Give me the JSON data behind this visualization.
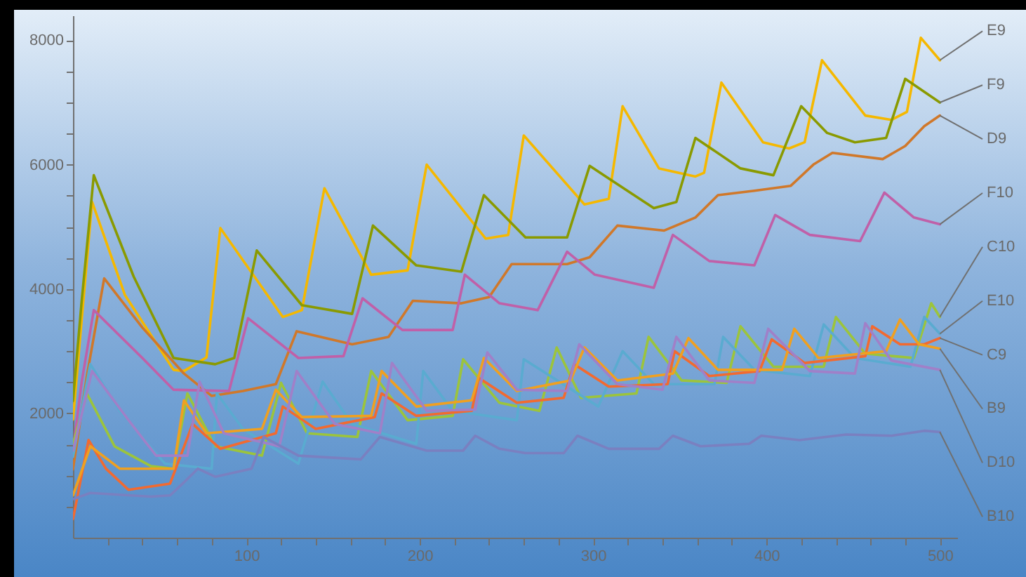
{
  "chart_data": {
    "type": "line",
    "xlim": [
      0,
      510
    ],
    "ylim": [
      0,
      8400
    ],
    "xticks": [
      {
        "value": 20,
        "label": null
      },
      {
        "value": 40,
        "label": null
      },
      {
        "value": 60,
        "label": null
      },
      {
        "value": 80,
        "label": null
      },
      100,
      {
        "value": 120,
        "label": null
      },
      {
        "value": 140,
        "label": null
      },
      {
        "value": 160,
        "label": null
      },
      {
        "value": 180,
        "label": null
      },
      200,
      {
        "value": 220,
        "label": null
      },
      {
        "value": 240,
        "label": null
      },
      {
        "value": 260,
        "label": null
      },
      {
        "value": 280,
        "label": null
      },
      300,
      {
        "value": 320,
        "label": null
      },
      {
        "value": 340,
        "label": null
      },
      {
        "value": 360,
        "label": null
      },
      {
        "value": 380,
        "label": null
      },
      400,
      {
        "value": 420,
        "label": null
      },
      {
        "value": 440,
        "label": null
      },
      {
        "value": 460,
        "label": null
      },
      {
        "value": 480,
        "label": null
      },
      500
    ],
    "yticks": [
      {
        "value": 500,
        "label": null
      },
      {
        "value": 1000,
        "label": null
      },
      {
        "value": 1500,
        "label": null
      },
      2000,
      {
        "value": 2500,
        "label": null
      },
      {
        "value": 3000,
        "label": null
      },
      {
        "value": 3500,
        "label": null
      },
      4000,
      {
        "value": 4500,
        "label": null
      },
      {
        "value": 5000,
        "label": null
      },
      {
        "value": 5500,
        "label": null
      },
      6000,
      {
        "value": 6500,
        "label": null
      },
      {
        "value": 7000,
        "label": null
      },
      {
        "value": 7500,
        "label": null
      },
      8000
    ],
    "series": [
      {
        "name": "E9",
        "color": "#f5b800",
        "x": [
          0,
          5,
          11,
          30,
          58,
          64,
          77,
          85,
          121,
          132,
          145,
          172,
          193,
          204,
          238,
          251,
          260,
          295,
          309,
          317,
          338,
          359,
          364,
          374,
          398,
          413,
          422,
          432,
          457,
          472,
          481,
          489,
          500
        ],
        "values": [
          1900,
          3500,
          5400,
          3900,
          2700,
          2680,
          2900,
          4980,
          3550,
          3660,
          5620,
          4230,
          4300,
          6000,
          4810,
          4870,
          6470,
          5360,
          5450,
          6940,
          5940,
          5810,
          5870,
          7320,
          6360,
          6260,
          6360,
          7680,
          6790,
          6720,
          6850,
          8040,
          7680
        ]
      },
      {
        "name": "F9",
        "color": "#8a9a00",
        "x": [
          0,
          5,
          12,
          35,
          58,
          82,
          93,
          106,
          132,
          161,
          173,
          198,
          224,
          237,
          261,
          285,
          298,
          335,
          348,
          359,
          385,
          404,
          420,
          435,
          451,
          469,
          480,
          500
        ],
        "values": [
          2200,
          3800,
          5830,
          4200,
          2890,
          2790,
          2890,
          4620,
          3740,
          3600,
          5020,
          4380,
          4280,
          5510,
          4830,
          4830,
          5980,
          5300,
          5400,
          6430,
          5940,
          5830,
          6940,
          6510,
          6360,
          6430,
          7380,
          7000
        ]
      },
      {
        "name": "D9",
        "color": "#d0782a",
        "x": [
          0,
          8,
          18,
          40,
          64,
          80,
          98,
          117,
          129,
          161,
          182,
          196,
          224,
          240,
          253,
          285,
          298,
          314,
          341,
          359,
          372,
          393,
          414,
          427,
          438,
          467,
          480,
          491,
          500
        ],
        "values": [
          1100,
          2600,
          4170,
          3380,
          2640,
          2280,
          2360,
          2470,
          3320,
          3110,
          3230,
          3810,
          3770,
          3870,
          4400,
          4400,
          4510,
          5020,
          4940,
          5150,
          5510,
          5580,
          5660,
          6000,
          6190,
          6090,
          6300,
          6620,
          6790
        ]
      },
      {
        "name": "F10",
        "color": "#c060a8",
        "x": [
          0,
          5,
          12,
          40,
          58,
          90,
          101,
          130,
          156,
          167,
          190,
          219,
          226,
          246,
          268,
          285,
          301,
          335,
          346,
          367,
          393,
          405,
          425,
          454,
          468,
          485,
          500
        ],
        "values": [
          1400,
          2500,
          3660,
          2890,
          2380,
          2360,
          3530,
          2890,
          2920,
          3850,
          3340,
          3340,
          4230,
          3770,
          3660,
          4600,
          4230,
          4020,
          4870,
          4450,
          4380,
          5190,
          4870,
          4770,
          5550,
          5150,
          5040
        ]
      },
      {
        "name": "C10",
        "color": "#9cc43c",
        "x": [
          0,
          8,
          24,
          45,
          58,
          66,
          82,
          109,
          120,
          135,
          164,
          172,
          193,
          219,
          225,
          246,
          269,
          279,
          293,
          325,
          332,
          351,
          377,
          385,
          404,
          433,
          440,
          457,
          485,
          495,
          500
        ],
        "values": [
          1500,
          2320,
          1470,
          1150,
          1110,
          2320,
          1470,
          1320,
          2490,
          1680,
          1620,
          2680,
          1890,
          1960,
          2870,
          2170,
          2040,
          3060,
          2250,
          2320,
          3230,
          2530,
          2490,
          3400,
          2750,
          2750,
          3550,
          2960,
          2890,
          3770,
          3550
        ]
      },
      {
        "name": "E10",
        "color": "#5aabd0",
        "x": [
          0,
          10,
          27,
          53,
          80,
          83,
          98,
          130,
          144,
          161,
          198,
          202,
          219,
          256,
          260,
          303,
          317,
          335,
          370,
          375,
          393,
          425,
          433,
          451,
          483,
          491,
          500
        ],
        "values": [
          1300,
          2790,
          2040,
          1190,
          1110,
          2320,
          1750,
          1190,
          2510,
          1830,
          1510,
          2680,
          2040,
          1890,
          2870,
          2110,
          3000,
          2470,
          2470,
          3230,
          2700,
          2600,
          3430,
          2890,
          2750,
          3550,
          3280
        ]
      },
      {
        "name": "C9",
        "color": "#f26a30",
        "x": [
          0,
          9,
          19,
          32,
          56,
          69,
          85,
          117,
          121,
          140,
          174,
          178,
          198,
          230,
          234,
          256,
          283,
          289,
          309,
          343,
          347,
          367,
          396,
          403,
          422,
          457,
          461,
          477,
          491,
          500
        ],
        "values": [
          300,
          1570,
          1110,
          770,
          870,
          1830,
          1430,
          1680,
          2110,
          1750,
          1940,
          2320,
          1960,
          2040,
          2570,
          2170,
          2250,
          2790,
          2430,
          2470,
          3000,
          2600,
          2680,
          3190,
          2810,
          2920,
          3400,
          3110,
          3110,
          3210
        ]
      },
      {
        "name": "B9",
        "color": "#f0a020",
        "x": [
          0,
          10,
          27,
          58,
          64,
          77,
          109,
          117,
          132,
          172,
          178,
          198,
          230,
          237,
          256,
          287,
          295,
          314,
          346,
          355,
          372,
          409,
          416,
          430,
          469,
          477,
          488,
          500
        ],
        "values": [
          680,
          1470,
          1110,
          1110,
          2210,
          1680,
          1750,
          2380,
          1940,
          1960,
          2680,
          2110,
          2210,
          2890,
          2360,
          2530,
          3060,
          2530,
          2640,
          3210,
          2700,
          2700,
          3360,
          2890,
          3000,
          3510,
          3110,
          3040
        ]
      },
      {
        "name": "D10",
        "color": "#a080c8",
        "x": [
          0,
          11,
          32,
          48,
          66,
          73,
          87,
          119,
          129,
          151,
          177,
          184,
          204,
          232,
          239,
          256,
          285,
          292,
          314,
          340,
          348,
          367,
          393,
          401,
          425,
          451,
          457,
          472,
          500
        ],
        "values": [
          1400,
          2680,
          1890,
          1320,
          1320,
          2510,
          1680,
          1470,
          2680,
          1830,
          1680,
          2810,
          2040,
          2060,
          2980,
          2380,
          2360,
          3110,
          2470,
          2380,
          3230,
          2530,
          2490,
          3360,
          2680,
          2640,
          3450,
          2850,
          2700
        ]
      },
      {
        "name": "B10",
        "color": "#7a80c0",
        "x": [
          0,
          10,
          45,
          56,
          64,
          72,
          82,
          103,
          110,
          130,
          166,
          177,
          204,
          225,
          232,
          246,
          261,
          283,
          291,
          309,
          338,
          346,
          362,
          390,
          397,
          419,
          446,
          472,
          491,
          500
        ],
        "values": [
          620,
          720,
          660,
          680,
          890,
          1110,
          980,
          1110,
          1620,
          1320,
          1260,
          1620,
          1400,
          1400,
          1640,
          1430,
          1360,
          1360,
          1640,
          1430,
          1430,
          1640,
          1470,
          1510,
          1640,
          1570,
          1660,
          1640,
          1720,
          1700
        ]
      }
    ]
  }
}
